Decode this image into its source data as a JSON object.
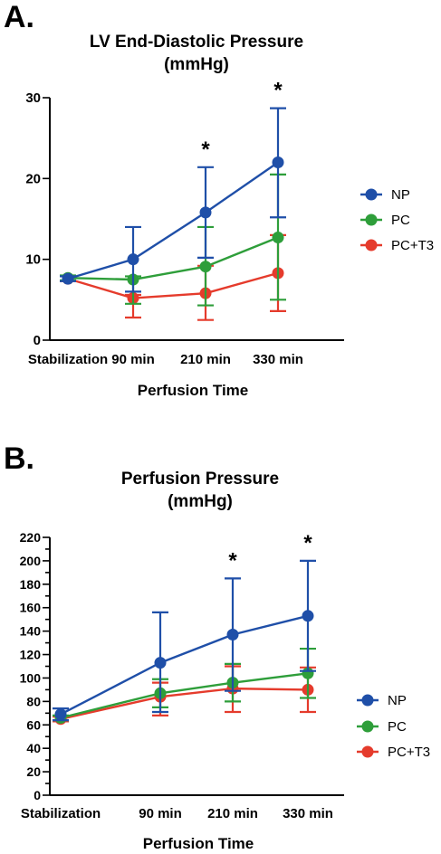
{
  "colors": {
    "np": "#1f4fa8",
    "pc": "#2e9e3a",
    "pct3": "#e53b2c"
  },
  "chart_data": [
    {
      "panel_label": "A.",
      "type": "line",
      "title": "LV End-Diastolic Pressure",
      "subtitle": "(mmHg)",
      "xlabel": "Perfusion Time",
      "ylabel": "",
      "categories": [
        "Stabilization",
        "90 min",
        "210 min",
        "330 min"
      ],
      "ylim": [
        0,
        30
      ],
      "yticks": [
        "0",
        "10",
        "20",
        "30"
      ],
      "legend_position": "right",
      "significance": [
        "",
        "",
        "*",
        "*"
      ],
      "series": [
        {
          "name": "NP",
          "values": [
            7.6,
            10.0,
            15.8,
            22.0
          ],
          "err_upper": [
            7.9,
            14.0,
            21.4,
            28.7
          ],
          "err_lower": [
            7.3,
            6.0,
            10.2,
            15.2
          ]
        },
        {
          "name": "PC",
          "values": [
            7.7,
            7.5,
            9.1,
            12.7
          ],
          "err_upper": [
            8.0,
            7.9,
            14.0,
            20.5
          ],
          "err_lower": [
            7.4,
            4.5,
            4.3,
            5.0
          ]
        },
        {
          "name": "PC+T3",
          "values": [
            7.6,
            5.2,
            5.8,
            8.3
          ],
          "err_upper": [
            7.9,
            5.6,
            9.2,
            13.0
          ],
          "err_lower": [
            7.3,
            2.8,
            2.5,
            3.6
          ]
        }
      ]
    },
    {
      "panel_label": "B.",
      "type": "line",
      "title": "Perfusion Pressure",
      "subtitle": "(mmHg)",
      "xlabel": "Perfusion Time",
      "ylabel": "",
      "categories": [
        "Stabilization",
        "90 min",
        "210 min",
        "330 min"
      ],
      "ylim": [
        0,
        220
      ],
      "yticks": [
        "0",
        "10",
        "20",
        "30",
        "40",
        "50",
        "60",
        "70",
        "80",
        "90",
        "100",
        "110",
        "120",
        "130",
        "140",
        "150",
        "160",
        "170",
        "180",
        "190",
        "200",
        "210",
        "220"
      ],
      "ytick_labels": [
        "0",
        "",
        "20",
        "",
        "40",
        "",
        "60",
        "",
        "80",
        "",
        "100",
        "",
        "120",
        "",
        "140",
        "",
        "160",
        "",
        "180",
        "",
        "200",
        "",
        "220"
      ],
      "legend_position": "right",
      "significance": [
        "",
        "",
        "*",
        "*"
      ],
      "series": [
        {
          "name": "NP",
          "values": [
            69,
            113,
            137,
            153
          ],
          "err_upper": [
            74,
            156,
            185,
            200
          ],
          "err_lower": [
            64,
            71,
            89,
            106
          ]
        },
        {
          "name": "PC",
          "values": [
            66,
            87,
            96,
            104
          ],
          "err_upper": [
            68,
            99,
            112,
            125
          ],
          "err_lower": [
            64,
            75,
            80,
            83
          ]
        },
        {
          "name": "PC+T3",
          "values": [
            65,
            84,
            91,
            90
          ],
          "err_upper": [
            67,
            96,
            110,
            109
          ],
          "err_lower": [
            63,
            68,
            71,
            71
          ]
        }
      ]
    }
  ]
}
